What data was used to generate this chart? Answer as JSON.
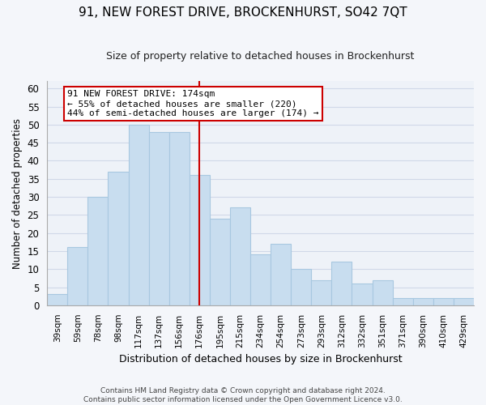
{
  "title": "91, NEW FOREST DRIVE, BROCKENHURST, SO42 7QT",
  "subtitle": "Size of property relative to detached houses in Brockenhurst",
  "xlabel": "Distribution of detached houses by size in Brockenhurst",
  "ylabel": "Number of detached properties",
  "bin_labels": [
    "39sqm",
    "59sqm",
    "78sqm",
    "98sqm",
    "117sqm",
    "137sqm",
    "156sqm",
    "176sqm",
    "195sqm",
    "215sqm",
    "234sqm",
    "254sqm",
    "273sqm",
    "293sqm",
    "312sqm",
    "332sqm",
    "351sqm",
    "371sqm",
    "390sqm",
    "410sqm",
    "429sqm"
  ],
  "bar_heights": [
    3,
    16,
    30,
    37,
    50,
    48,
    48,
    36,
    24,
    27,
    14,
    17,
    10,
    7,
    12,
    6,
    7,
    2,
    2,
    2,
    2
  ],
  "bar_color": "#c8ddef",
  "bar_edge_color": "#a8c8e0",
  "vline_x_index": 7,
  "vline_color": "#cc0000",
  "ylim": [
    0,
    62
  ],
  "yticks": [
    0,
    5,
    10,
    15,
    20,
    25,
    30,
    35,
    40,
    45,
    50,
    55,
    60
  ],
  "annotation_title": "91 NEW FOREST DRIVE: 174sqm",
  "annotation_line1": "← 55% of detached houses are smaller (220)",
  "annotation_line2": "44% of semi-detached houses are larger (174) →",
  "footer_line1": "Contains HM Land Registry data © Crown copyright and database right 2024.",
  "footer_line2": "Contains public sector information licensed under the Open Government Licence v3.0.",
  "grid_color": "#d0d8e8",
  "bg_color": "#eef2f8",
  "fig_bg_color": "#f4f6fa"
}
